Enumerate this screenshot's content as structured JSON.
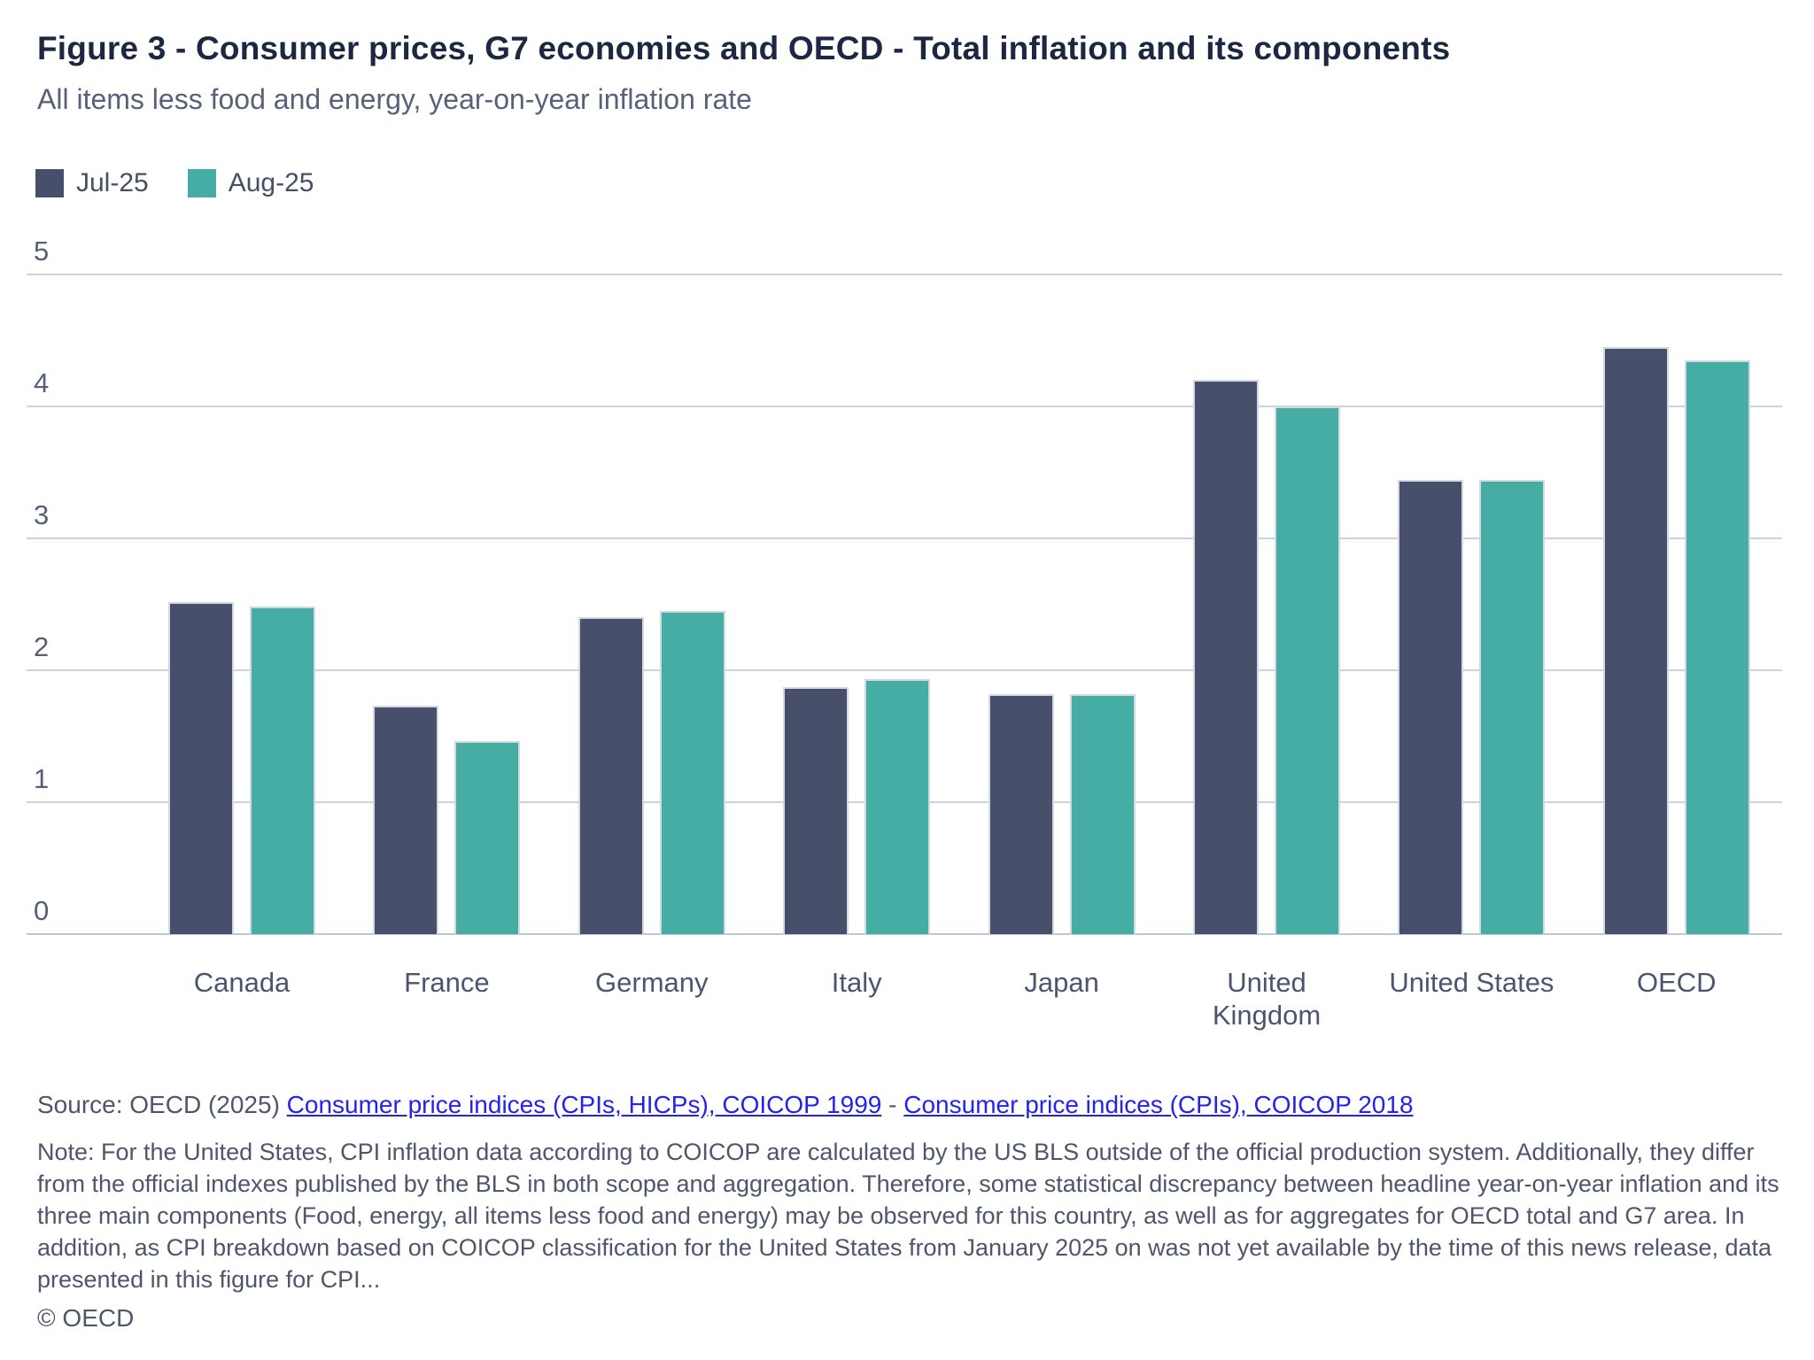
{
  "header": {
    "title": "Figure 3 - Consumer prices, G7 economies and OECD - Total inflation and its components",
    "subtitle": "All items less food and energy, year-on-year inflation rate"
  },
  "legend": {
    "items": [
      {
        "label": "Jul-25",
        "color": "#474F6B"
      },
      {
        "label": "Aug-25",
        "color": "#45ADA4"
      }
    ]
  },
  "chart_data": {
    "type": "bar",
    "title": "Figure 3 - Consumer prices, G7 economies and OECD - Total inflation and its components",
    "subtitle": "All items less food and energy, year-on-year inflation rate",
    "categories": [
      "Canada",
      "France",
      "Germany",
      "Italy",
      "Japan",
      "United Kingdom",
      "United States",
      "OECD"
    ],
    "category_label_lines": [
      [
        "Canada"
      ],
      [
        "France"
      ],
      [
        "Germany"
      ],
      [
        "Italy"
      ],
      [
        "Japan"
      ],
      [
        "United",
        "Kingdom"
      ],
      [
        "United States"
      ],
      [
        "OECD"
      ]
    ],
    "series": [
      {
        "name": "Jul-25",
        "color": "#474F6B",
        "values": [
          2.52,
          1.73,
          2.4,
          1.87,
          1.82,
          4.2,
          3.44,
          4.45
        ]
      },
      {
        "name": "Aug-25",
        "color": "#45ADA4",
        "values": [
          2.48,
          1.46,
          2.45,
          1.93,
          1.82,
          4.0,
          3.44,
          4.35
        ]
      }
    ],
    "xlabel": "",
    "ylabel": "",
    "ylim": [
      0,
      5
    ],
    "yticks": [
      0,
      1,
      2,
      3,
      4,
      5
    ],
    "grid": true,
    "legend_position": "top-left"
  },
  "source": {
    "prefix": "Source: OECD (2025) ",
    "link1": "Consumer price indices (CPIs, HICPs), COICOP 1999",
    "separator": " - ",
    "link2": "Consumer price indices (CPIs), COICOP 2018"
  },
  "note": "Note: For the United States, CPI inflation data according to COICOP are calculated by the US BLS outside of the official production system. Additionally, they differ from the official indexes published by the BLS in both scope and aggregation. Therefore, some statistical discrepancy between headline year-on-year inflation and its three main components (Food, energy, all items less food and energy) may be observed for this country, as well as for aggregates for OECD total and G7 area. In addition, as CPI breakdown based on COICOP classification for the United States from January 2025 on was not yet available by the time of this news release, data presented in this figure for CPI...",
  "copyright": "© OECD"
}
